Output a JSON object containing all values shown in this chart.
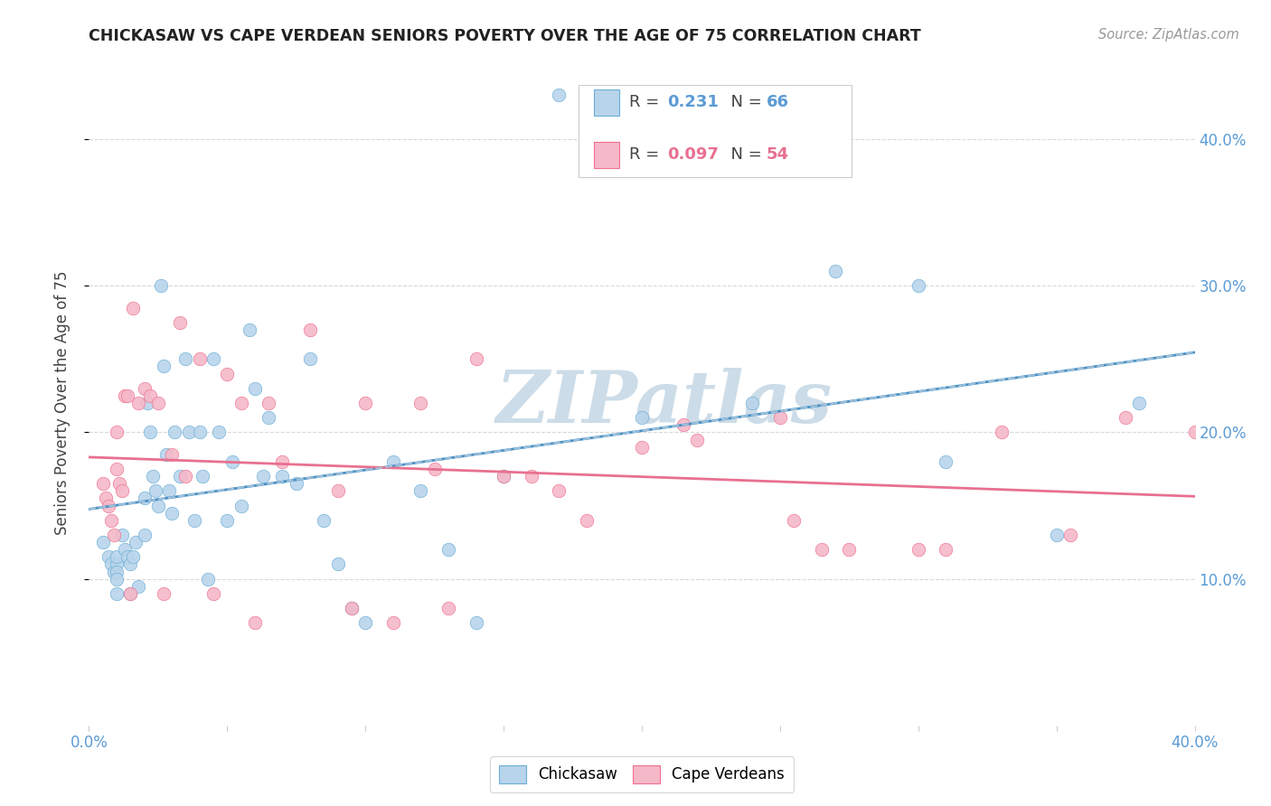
{
  "title": "CHICKASAW VS CAPE VERDEAN SENIORS POVERTY OVER THE AGE OF 75 CORRELATION CHART",
  "source": "Source: ZipAtlas.com",
  "ylabel": "Seniors Poverty Over the Age of 75",
  "xlim": [
    0.0,
    0.4
  ],
  "ylim": [
    -0.02,
    0.44
  ],
  "plot_ylim": [
    0.0,
    0.44
  ],
  "R_chickasaw": 0.231,
  "N_chickasaw": 66,
  "R_capeverdean": 0.097,
  "N_capeverdean": 54,
  "chickasaw_fill": "#b8d4eb",
  "capeverdean_fill": "#f5b8c8",
  "chickasaw_edge": "#6aaed6",
  "capeverdean_edge": "#f07090",
  "chickasaw_line": "#4a90c4",
  "capeverdean_line": "#e87090",
  "dashed_line": "#aac8e0",
  "watermark": "ZIPatlas",
  "watermark_color": "#ccdce8",
  "chickasaw_x": [
    0.005,
    0.007,
    0.008,
    0.009,
    0.01,
    0.01,
    0.01,
    0.01,
    0.01,
    0.012,
    0.013,
    0.014,
    0.015,
    0.015,
    0.016,
    0.017,
    0.018,
    0.02,
    0.02,
    0.021,
    0.022,
    0.023,
    0.024,
    0.025,
    0.026,
    0.027,
    0.028,
    0.029,
    0.03,
    0.031,
    0.033,
    0.035,
    0.036,
    0.038,
    0.04,
    0.041,
    0.043,
    0.045,
    0.047,
    0.05,
    0.052,
    0.055,
    0.058,
    0.06,
    0.063,
    0.065,
    0.07,
    0.075,
    0.08,
    0.085,
    0.09,
    0.095,
    0.1,
    0.11,
    0.12,
    0.13,
    0.14,
    0.15,
    0.17,
    0.2,
    0.24,
    0.27,
    0.3,
    0.31,
    0.35,
    0.38
  ],
  "chickasaw_y": [
    0.125,
    0.115,
    0.11,
    0.105,
    0.11,
    0.115,
    0.105,
    0.1,
    0.09,
    0.13,
    0.12,
    0.115,
    0.11,
    0.09,
    0.115,
    0.125,
    0.095,
    0.155,
    0.13,
    0.22,
    0.2,
    0.17,
    0.16,
    0.15,
    0.3,
    0.245,
    0.185,
    0.16,
    0.145,
    0.2,
    0.17,
    0.25,
    0.2,
    0.14,
    0.2,
    0.17,
    0.1,
    0.25,
    0.2,
    0.14,
    0.18,
    0.15,
    0.27,
    0.23,
    0.17,
    0.21,
    0.17,
    0.165,
    0.25,
    0.14,
    0.11,
    0.08,
    0.07,
    0.18,
    0.16,
    0.12,
    0.07,
    0.17,
    0.43,
    0.21,
    0.22,
    0.31,
    0.3,
    0.18,
    0.13,
    0.22
  ],
  "capeverdean_x": [
    0.005,
    0.006,
    0.007,
    0.008,
    0.009,
    0.01,
    0.01,
    0.011,
    0.012,
    0.013,
    0.014,
    0.015,
    0.016,
    0.018,
    0.02,
    0.022,
    0.025,
    0.027,
    0.03,
    0.033,
    0.035,
    0.04,
    0.045,
    0.05,
    0.055,
    0.06,
    0.065,
    0.07,
    0.08,
    0.09,
    0.095,
    0.1,
    0.11,
    0.12,
    0.125,
    0.13,
    0.14,
    0.15,
    0.16,
    0.17,
    0.18,
    0.2,
    0.215,
    0.22,
    0.25,
    0.255,
    0.265,
    0.275,
    0.3,
    0.31,
    0.33,
    0.355,
    0.375,
    0.4
  ],
  "capeverdean_y": [
    0.165,
    0.155,
    0.15,
    0.14,
    0.13,
    0.2,
    0.175,
    0.165,
    0.16,
    0.225,
    0.225,
    0.09,
    0.285,
    0.22,
    0.23,
    0.225,
    0.22,
    0.09,
    0.185,
    0.275,
    0.17,
    0.25,
    0.09,
    0.24,
    0.22,
    0.07,
    0.22,
    0.18,
    0.27,
    0.16,
    0.08,
    0.22,
    0.07,
    0.22,
    0.175,
    0.08,
    0.25,
    0.17,
    0.17,
    0.16,
    0.14,
    0.19,
    0.205,
    0.195,
    0.21,
    0.14,
    0.12,
    0.12,
    0.12,
    0.12,
    0.2,
    0.13,
    0.21,
    0.2
  ]
}
